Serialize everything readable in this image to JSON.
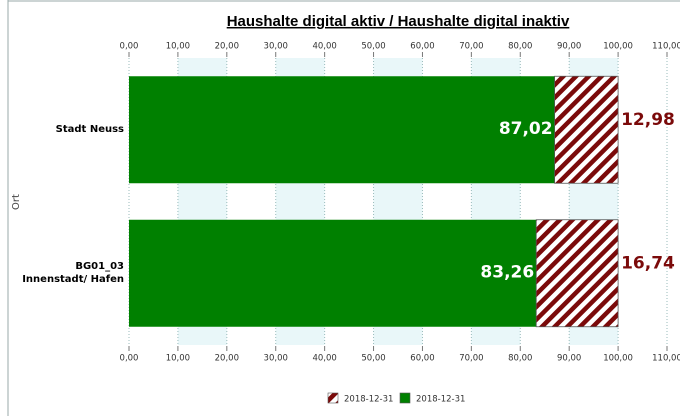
{
  "chart_data": {
    "type": "hbar_stacked",
    "title": "Haushalte digital aktiv / Haushalte digital inaktiv",
    "y_label": "Ort",
    "categories": [
      "Stadt Neuss",
      "BG01_03 Innenstadt/ Hafen"
    ],
    "series": [
      {
        "name": "2018-12-31",
        "color": "#008000",
        "pattern": "solid",
        "values": [
          87.02,
          83.26
        ],
        "value_labels": [
          "87,02",
          "83,26"
        ]
      },
      {
        "name": "2018-12-31",
        "color": "#7b0a0a",
        "pattern": "hatch",
        "values": [
          12.98,
          16.74
        ],
        "value_labels": [
          "12,98",
          "16,74"
        ]
      }
    ],
    "xlim": [
      0,
      110
    ],
    "xticks": [
      {
        "value": 0,
        "label": "0,00"
      },
      {
        "value": 10,
        "label": "10,00"
      },
      {
        "value": 20,
        "label": "20,00"
      },
      {
        "value": 30,
        "label": "30,00"
      },
      {
        "value": 40,
        "label": "40,00"
      },
      {
        "value": 50,
        "label": "50,00"
      },
      {
        "value": 60,
        "label": "60,00"
      },
      {
        "value": 70,
        "label": "70,00"
      },
      {
        "value": 80,
        "label": "80,00"
      },
      {
        "value": 90,
        "label": "90,00"
      },
      {
        "value": 100,
        "label": "100,00"
      },
      {
        "value": 110,
        "label": "110,00"
      }
    ],
    "grid": true
  }
}
